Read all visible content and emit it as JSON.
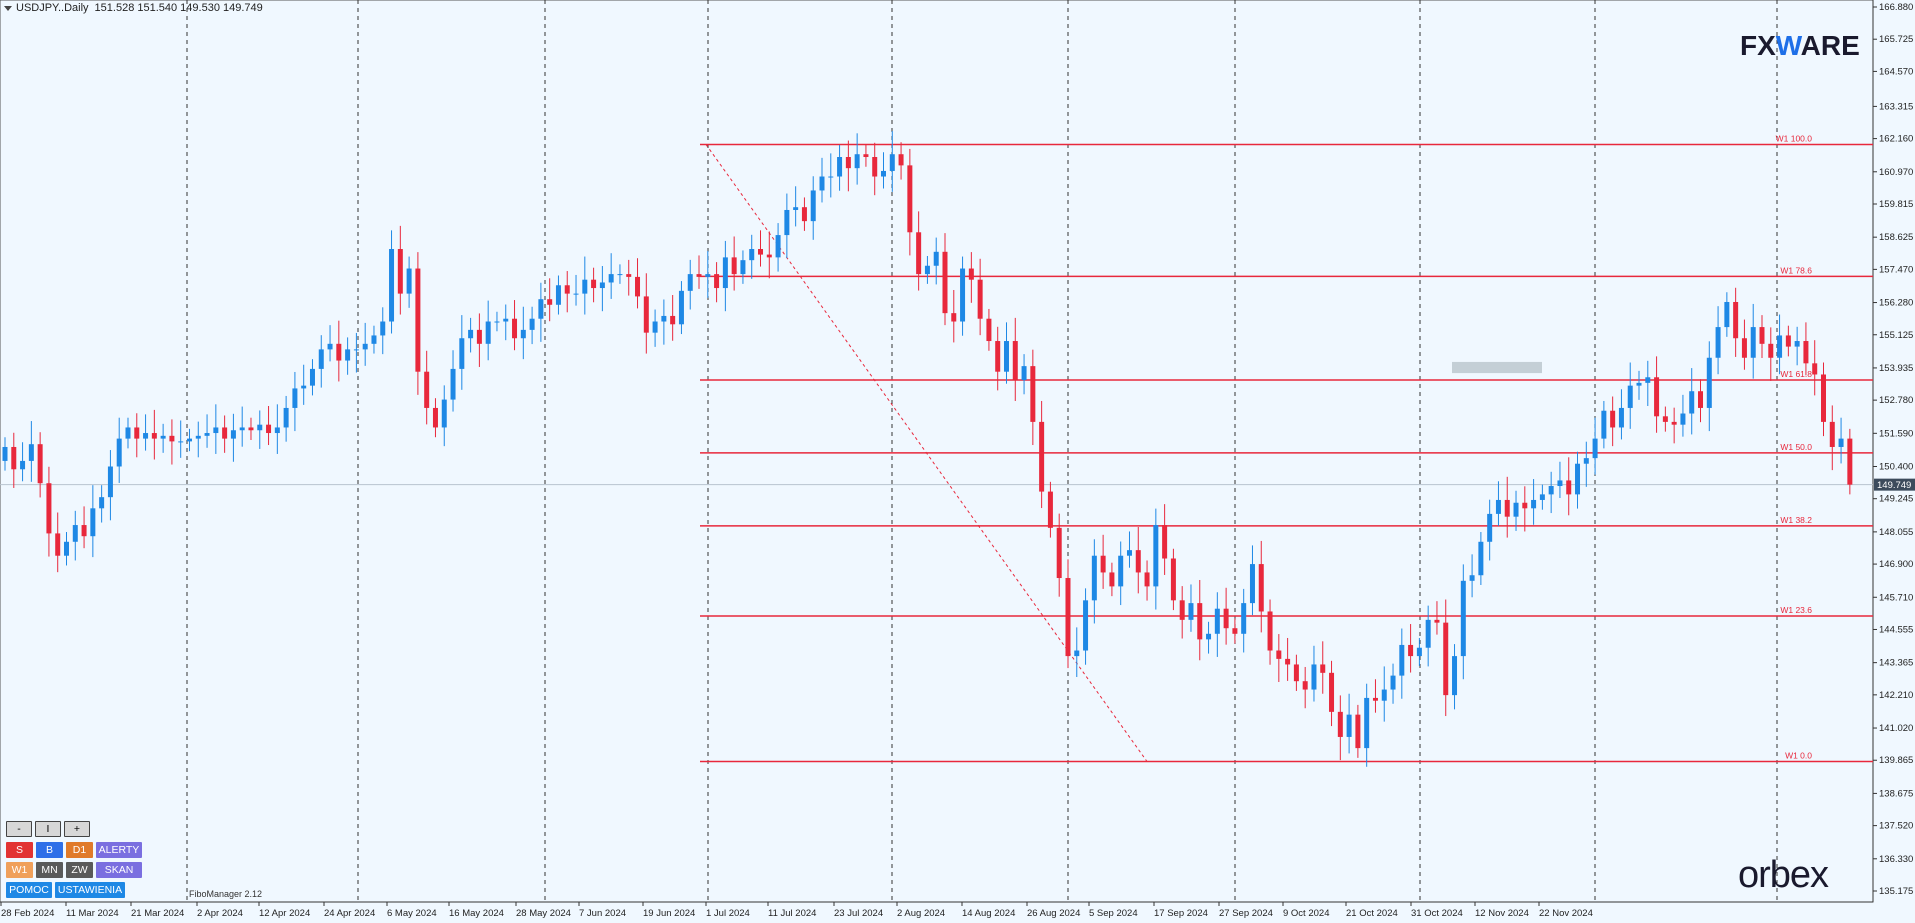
{
  "header": {
    "symbol": "USDJPY..Daily",
    "ohlc": "151.528 151.540 149.530 149.749"
  },
  "logos": {
    "fxware_a": "FX",
    "fxware_w": "W",
    "fxware_b": "ARE",
    "orbex": "orbex"
  },
  "indicator_label": "FiboManager 2.12",
  "panel": {
    "zoom_out": "-",
    "pause": "I",
    "zoom_in": "+",
    "row1": [
      "S",
      "B",
      "D1",
      "ALERTY"
    ],
    "row2": [
      "W1",
      "MN",
      "ZW",
      "SKAN"
    ],
    "row3": [
      "POMOC",
      "USTAWIENIA"
    ]
  },
  "colors": {
    "bull": "#1e88e5",
    "bear": "#e8283c",
    "fib": "#e8283c",
    "background": "#f0f8ff",
    "current_price_bg": "#3c4b5c"
  },
  "chart_data": {
    "type": "candlestick",
    "symbol": "USDJPY",
    "timeframe": "Daily",
    "current_price": 149.749,
    "y_ticks": [
      166.88,
      165.725,
      164.57,
      163.315,
      162.16,
      160.97,
      159.815,
      158.625,
      157.47,
      156.28,
      155.125,
      153.935,
      152.78,
      151.59,
      150.4,
      149.245,
      148.055,
      146.9,
      145.71,
      144.555,
      143.365,
      142.21,
      141.02,
      139.865,
      138.675,
      137.52,
      136.33,
      135.175
    ],
    "y_labels": [
      "166.880",
      "165.725",
      "164.570",
      "163.315",
      "162.160",
      "160.970",
      "159.815",
      "158.625",
      "157.470",
      "156.280",
      "155.125",
      "153.935",
      "152.780",
      "151.590",
      "150.400",
      "149.245",
      "148.055",
      "146.900",
      "145.710",
      "144.555",
      "143.365",
      "142.210",
      "141.020",
      "139.865",
      "138.675",
      "137.520",
      "136.330",
      "135.175"
    ],
    "x_labels": [
      "28 Feb 2024",
      "11 Mar 2024",
      "21 Mar 2024",
      "2 Apr 2024",
      "12 Apr 2024",
      "24 Apr 2024",
      "6 May 2024",
      "16 May 2024",
      "28 May 2024",
      "7 Jun 2024",
      "19 Jun 2024",
      "1 Jul 2024",
      "11 Jul 2024",
      "23 Jul 2024",
      "2 Aug 2024",
      "14 Aug 2024",
      "26 Aug 2024",
      "5 Sep 2024",
      "17 Sep 2024",
      "27 Sep 2024",
      "9 Oct 2024",
      "21 Oct 2024",
      "31 Oct 2024",
      "12 Nov 2024",
      "22 Nov 2024"
    ],
    "fib_levels": [
      {
        "label": "W1 100.0",
        "price": 161.95
      },
      {
        "label": "W1 78.6",
        "price": 157.22
      },
      {
        "label": "W1 61.8",
        "price": 153.5
      },
      {
        "label": "W1 50.0",
        "price": 150.89
      },
      {
        "label": "W1 38.2",
        "price": 148.27
      },
      {
        "label": "W1 23.6",
        "price": 145.04
      },
      {
        "label": "W1 0.0",
        "price": 139.82
      }
    ],
    "closes": [
      151.1,
      150.3,
      150.6,
      151.2,
      149.8,
      148.0,
      147.2,
      147.7,
      148.3,
      147.9,
      148.9,
      149.3,
      150.4,
      151.4,
      151.8,
      151.4,
      151.6,
      151.4,
      151.5,
      151.3,
      151.3,
      151.4,
      151.5,
      151.6,
      151.8,
      151.4,
      151.7,
      151.8,
      151.7,
      151.9,
      151.6,
      151.8,
      152.5,
      153.2,
      153.3,
      153.9,
      154.6,
      154.8,
      154.2,
      154.6,
      154.6,
      154.8,
      155.1,
      155.6,
      158.2,
      156.6,
      157.5,
      153.8,
      152.5,
      151.8,
      152.8,
      153.9,
      155.0,
      155.3,
      154.8,
      155.6,
      155.6,
      155.7,
      155.0,
      155.3,
      155.7,
      156.4,
      156.2,
      156.9,
      156.6,
      156.6,
      157.1,
      156.8,
      157.0,
      157.3,
      157.3,
      157.2,
      156.5,
      155.2,
      155.6,
      155.8,
      155.5,
      156.7,
      157.3,
      157.2,
      157.3,
      156.8,
      157.9,
      157.3,
      157.8,
      158.2,
      158.0,
      157.9,
      158.7,
      159.6,
      159.7,
      159.2,
      160.3,
      160.8,
      160.8,
      161.5,
      161.1,
      161.6,
      161.5,
      160.8,
      161.0,
      161.6,
      161.2,
      158.8,
      157.3,
      157.6,
      158.1,
      155.9,
      155.6,
      157.5,
      157.1,
      155.7,
      154.9,
      153.8,
      154.9,
      153.5,
      154.0,
      152.0,
      149.5,
      148.2,
      146.4,
      143.6,
      143.8,
      145.6,
      147.2,
      146.6,
      146.1,
      147.2,
      147.4,
      146.6,
      146.1,
      148.3,
      147.1,
      145.6,
      144.9,
      145.5,
      144.2,
      144.4,
      145.3,
      144.6,
      144.4,
      145.5,
      146.9,
      145.2,
      143.8,
      143.5,
      143.3,
      142.7,
      142.4,
      143.3,
      143.0,
      141.6,
      140.7,
      141.5,
      140.3,
      142.1,
      142.0,
      142.4,
      142.9,
      144.0,
      143.6,
      143.9,
      144.9,
      144.8,
      142.2,
      143.6,
      146.3,
      146.5,
      147.7,
      148.7,
      149.2,
      148.6,
      149.1,
      148.9,
      149.2,
      149.4,
      149.7,
      149.9,
      149.4,
      150.5,
      150.7,
      151.4,
      152.4,
      151.8,
      152.5,
      153.3,
      153.4,
      153.6,
      152.2,
      152.0,
      151.9,
      152.3,
      153.1,
      152.5,
      154.3,
      155.4,
      156.3,
      155.0,
      154.3,
      155.4,
      154.8,
      154.3,
      155.1,
      154.7,
      154.9,
      154.1,
      153.7,
      152.0,
      151.1,
      151.4,
      149.75
    ]
  }
}
